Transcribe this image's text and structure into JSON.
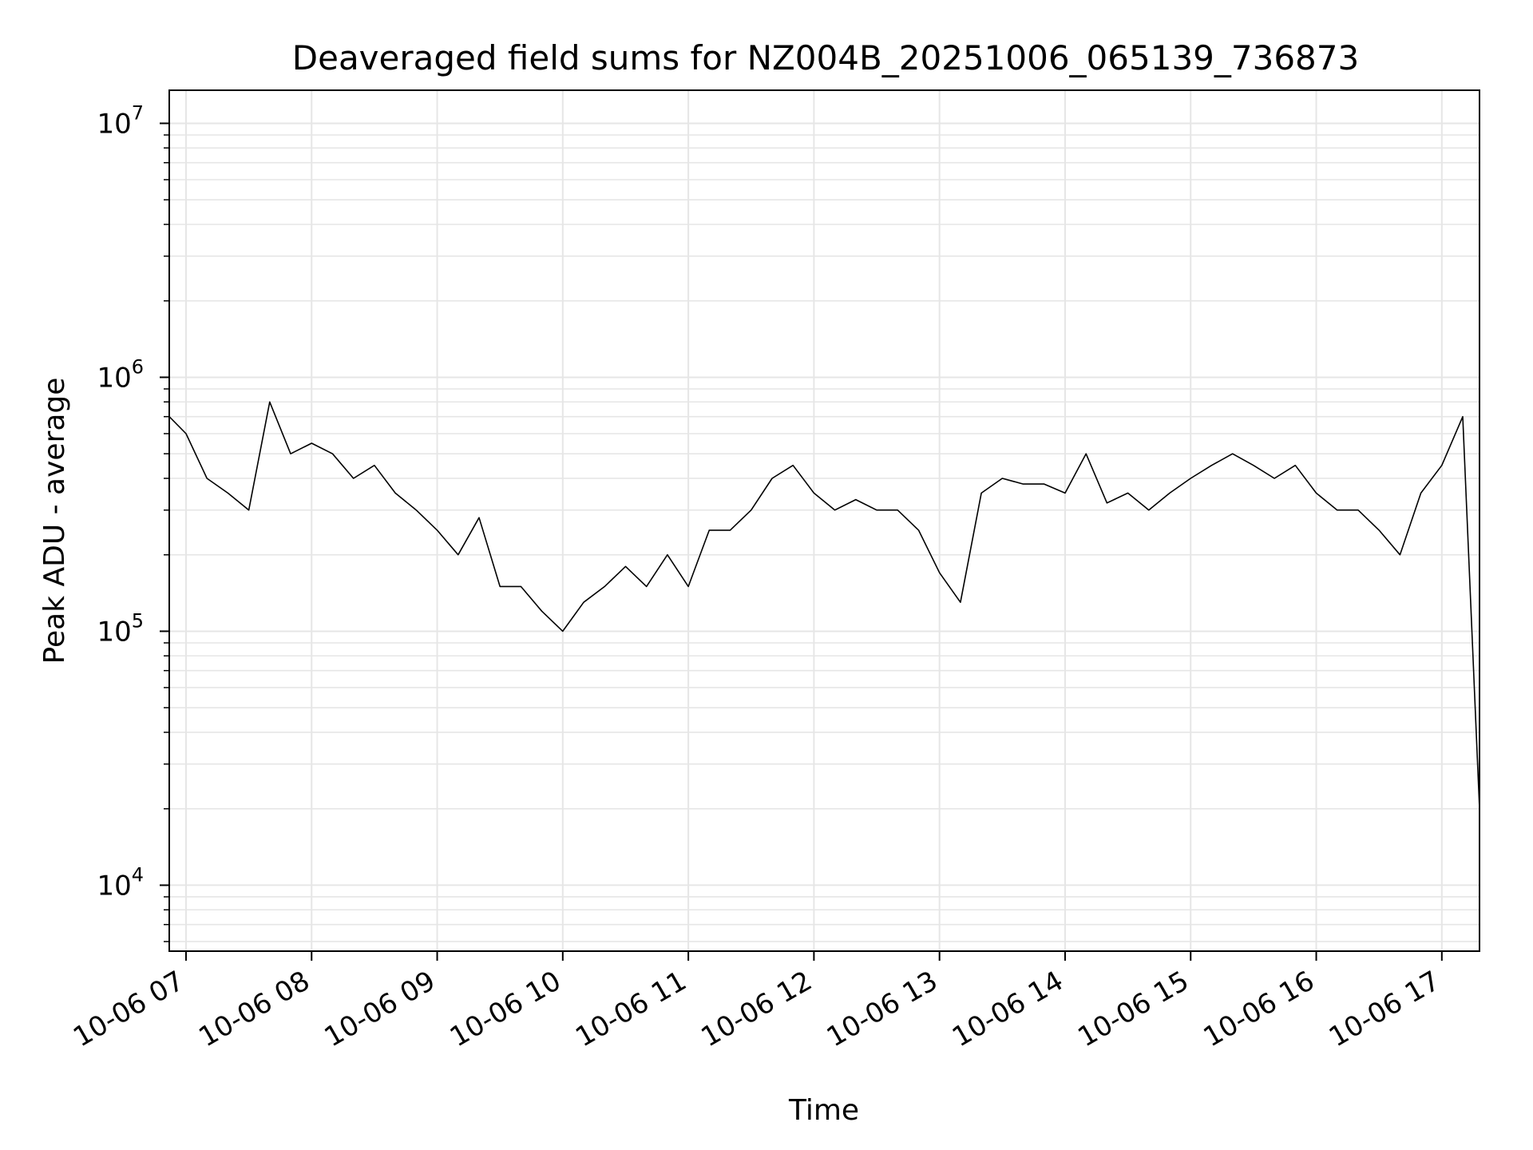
{
  "chart_data": {
    "type": "line",
    "title": "Deaveraged field sums for NZ004B_20251006_065139_736873",
    "xlabel": "Time",
    "ylabel": "Peak ADU - average",
    "x_ticks": [
      "10-06 07",
      "10-06 08",
      "10-06 09",
      "10-06 10",
      "10-06 11",
      "10-06 12",
      "10-06 13",
      "10-06 14",
      "10-06 15",
      "10-06 16",
      "10-06 17"
    ],
    "y_ticks": [
      {
        "base": "10",
        "exp": "4",
        "value": 10000
      },
      {
        "base": "10",
        "exp": "5",
        "value": 100000
      },
      {
        "base": "10",
        "exp": "6",
        "value": 1000000
      },
      {
        "base": "10",
        "exp": "7",
        "value": 10000000
      }
    ],
    "xlim": [
      "2025-10-06T06:52",
      "2025-10-06T17:18"
    ],
    "ylim": [
      5500,
      13500000
    ],
    "yscale": "log",
    "grid": true,
    "line_color": "#000000",
    "grid_color": "#e6e6e6",
    "series": [
      {
        "x": [
          "2025-10-06T06:52",
          "2025-10-06T07:00",
          "2025-10-06T07:10",
          "2025-10-06T07:20",
          "2025-10-06T07:30",
          "2025-10-06T07:40",
          "2025-10-06T07:50",
          "2025-10-06T08:00",
          "2025-10-06T08:10",
          "2025-10-06T08:20",
          "2025-10-06T08:30",
          "2025-10-06T08:40",
          "2025-10-06T08:50",
          "2025-10-06T09:00",
          "2025-10-06T09:10",
          "2025-10-06T09:20",
          "2025-10-06T09:30",
          "2025-10-06T09:40",
          "2025-10-06T09:50",
          "2025-10-06T10:00",
          "2025-10-06T10:10",
          "2025-10-06T10:20",
          "2025-10-06T10:30",
          "2025-10-06T10:40",
          "2025-10-06T10:50",
          "2025-10-06T11:00",
          "2025-10-06T11:10",
          "2025-10-06T11:20",
          "2025-10-06T11:30",
          "2025-10-06T11:40",
          "2025-10-06T11:50",
          "2025-10-06T12:00",
          "2025-10-06T12:10",
          "2025-10-06T12:20",
          "2025-10-06T12:30",
          "2025-10-06T12:40",
          "2025-10-06T12:50",
          "2025-10-06T13:00",
          "2025-10-06T13:10",
          "2025-10-06T13:20",
          "2025-10-06T13:30",
          "2025-10-06T13:40",
          "2025-10-06T13:50",
          "2025-10-06T14:00",
          "2025-10-06T14:10",
          "2025-10-06T14:20",
          "2025-10-06T14:30",
          "2025-10-06T14:40",
          "2025-10-06T14:50",
          "2025-10-06T15:00",
          "2025-10-06T15:10",
          "2025-10-06T15:20",
          "2025-10-06T15:30",
          "2025-10-06T15:40",
          "2025-10-06T15:50",
          "2025-10-06T16:00",
          "2025-10-06T16:10",
          "2025-10-06T16:20",
          "2025-10-06T16:30",
          "2025-10-06T16:40",
          "2025-10-06T16:50",
          "2025-10-06T17:00",
          "2025-10-06T17:10",
          "2025-10-06T17:18"
        ],
        "y": [
          700000,
          600000,
          400000,
          350000,
          300000,
          800000,
          500000,
          550000,
          500000,
          400000,
          450000,
          350000,
          300000,
          250000,
          200000,
          280000,
          150000,
          150000,
          120000,
          100000,
          130000,
          150000,
          180000,
          150000,
          200000,
          150000,
          250000,
          250000,
          300000,
          400000,
          450000,
          350000,
          300000,
          330000,
          300000,
          300000,
          250000,
          170000,
          130000,
          350000,
          400000,
          380000,
          380000,
          350000,
          500000,
          320000,
          350000,
          300000,
          350000,
          400000,
          450000,
          500000,
          450000,
          400000,
          450000,
          350000,
          300000,
          300000,
          250000,
          200000,
          350000,
          450000,
          700000,
          20000
        ]
      }
    ]
  }
}
